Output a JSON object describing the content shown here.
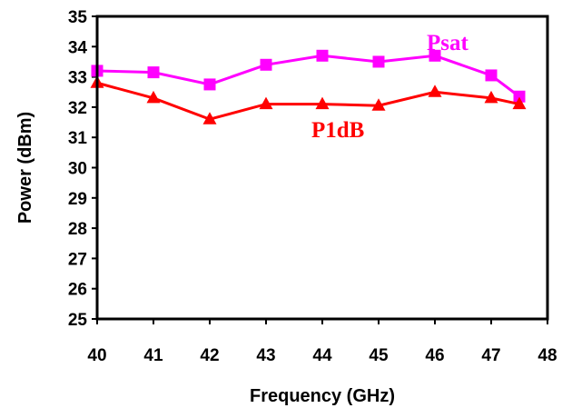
{
  "chart_data": {
    "type": "line",
    "title": "",
    "xlabel": "Frequency (GHz)",
    "ylabel": "Power (dBm)",
    "xlim": [
      40,
      48
    ],
    "ylim": [
      25,
      35
    ],
    "x_ticks": [
      "40",
      "41",
      "42",
      "43",
      "44",
      "45",
      "46",
      "47",
      "48"
    ],
    "y_ticks": [
      "25",
      "26",
      "27",
      "28",
      "29",
      "30",
      "31",
      "32",
      "33",
      "34",
      "35"
    ],
    "grid": false,
    "series": [
      {
        "name": "Psat",
        "color": "#ff00ff",
        "marker": "square",
        "points": [
          {
            "x": 40,
            "y": 33.2
          },
          {
            "x": 41,
            "y": 33.15
          },
          {
            "x": 42,
            "y": 32.75
          },
          {
            "x": 43,
            "y": 33.4
          },
          {
            "x": 44,
            "y": 33.7
          },
          {
            "x": 45,
            "y": 33.5
          },
          {
            "x": 46,
            "y": 33.7
          },
          {
            "x": 47,
            "y": 33.05
          },
          {
            "x": 47.5,
            "y": 32.35
          }
        ]
      },
      {
        "name": "P1dB",
        "color": "#ff0000",
        "marker": "triangle",
        "points": [
          {
            "x": 40,
            "y": 32.8
          },
          {
            "x": 41,
            "y": 32.3
          },
          {
            "x": 42,
            "y": 31.6
          },
          {
            "x": 43,
            "y": 32.1
          },
          {
            "x": 44,
            "y": 32.1
          },
          {
            "x": 45,
            "y": 32.05
          },
          {
            "x": 46,
            "y": 32.5
          },
          {
            "x": 47,
            "y": 32.3
          },
          {
            "x": 47.5,
            "y": 32.1
          }
        ]
      }
    ]
  }
}
